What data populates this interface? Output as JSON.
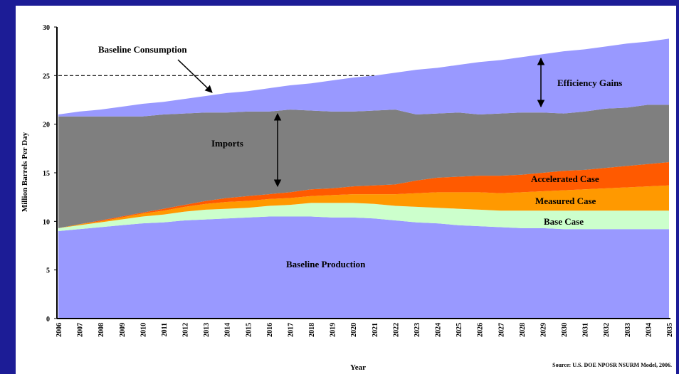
{
  "chart_data": {
    "type": "stacked_area",
    "annotation": "Baseline Consumption",
    "dashed_line": {
      "y": 25,
      "x_end": "2021"
    },
    "y_label": "Million Barrels Per Day",
    "x_label": "Year",
    "source": "Source: U.S. DOE NPOSR NSURM Model, 2006.",
    "categories": [
      "2006",
      "2007",
      "2008",
      "2009",
      "2010",
      "2011",
      "2012",
      "2013",
      "2014",
      "2015",
      "2016",
      "2017",
      "2018",
      "2019",
      "2020",
      "2021",
      "2022",
      "2023",
      "2024",
      "2025",
      "2026",
      "2027",
      "2028",
      "2029",
      "2030",
      "2031",
      "2032",
      "2033",
      "2034",
      "2035"
    ],
    "ylim": [
      0,
      30
    ],
    "yticks": [
      0,
      5,
      10,
      15,
      20,
      25,
      30
    ],
    "series": [
      {
        "name": "Baseline Production",
        "color": "#9999ff",
        "values": [
          9.0,
          9.2,
          9.4,
          9.6,
          9.8,
          9.9,
          10.1,
          10.2,
          10.3,
          10.4,
          10.5,
          10.5,
          10.5,
          10.4,
          10.4,
          10.3,
          10.1,
          9.9,
          9.8,
          9.6,
          9.5,
          9.4,
          9.3,
          9.3,
          9.2,
          9.2,
          9.2,
          9.2,
          9.2,
          9.2
        ]
      },
      {
        "name": "Base Case",
        "color": "#ccffcc",
        "values": [
          0.3,
          0.4,
          0.5,
          0.6,
          0.7,
          0.8,
          0.9,
          1.0,
          1.0,
          1.0,
          1.1,
          1.2,
          1.4,
          1.5,
          1.5,
          1.5,
          1.5,
          1.6,
          1.6,
          1.7,
          1.7,
          1.7,
          1.8,
          1.8,
          1.9,
          1.9,
          1.9,
          1.9,
          1.9,
          1.9
        ]
      },
      {
        "name": "Measured Case",
        "color": "#ff9900",
        "values": [
          0,
          0.1,
          0.1,
          0.2,
          0.3,
          0.4,
          0.5,
          0.6,
          0.7,
          0.7,
          0.7,
          0.7,
          0.7,
          0.8,
          0.9,
          1.0,
          1.2,
          1.4,
          1.6,
          1.7,
          1.8,
          1.8,
          1.9,
          2.0,
          2.1,
          2.2,
          2.3,
          2.4,
          2.5,
          2.6
        ]
      },
      {
        "name": "Accelerated Case",
        "color": "#ff5a00",
        "values": [
          0,
          0,
          0.1,
          0.1,
          0.1,
          0.2,
          0.2,
          0.3,
          0.4,
          0.5,
          0.5,
          0.6,
          0.7,
          0.7,
          0.8,
          0.9,
          1.0,
          1.3,
          1.5,
          1.6,
          1.7,
          1.8,
          1.8,
          1.9,
          2.0,
          2.0,
          2.1,
          2.2,
          2.3,
          2.4
        ]
      },
      {
        "name": "Imports",
        "color": "#7f7f7f",
        "values": [
          11.5,
          11.1,
          10.7,
          10.3,
          9.9,
          9.7,
          9.4,
          9.1,
          8.8,
          8.7,
          8.5,
          8.5,
          8.1,
          7.9,
          7.7,
          7.7,
          7.7,
          6.8,
          6.6,
          6.6,
          6.3,
          6.4,
          6.4,
          6.2,
          5.9,
          6.0,
          6.1,
          6.0,
          6.1,
          5.9
        ]
      },
      {
        "name": "Efficiency Gains",
        "color": "#9999ff",
        "values": [
          0.2,
          0.5,
          0.7,
          1.0,
          1.3,
          1.3,
          1.5,
          1.7,
          2.0,
          2.1,
          2.4,
          2.5,
          2.8,
          3.2,
          3.5,
          3.6,
          3.8,
          4.6,
          4.7,
          4.9,
          5.4,
          5.5,
          5.7,
          6.0,
          6.4,
          6.4,
          6.4,
          6.6,
          6.5,
          6.8
        ]
      }
    ]
  }
}
